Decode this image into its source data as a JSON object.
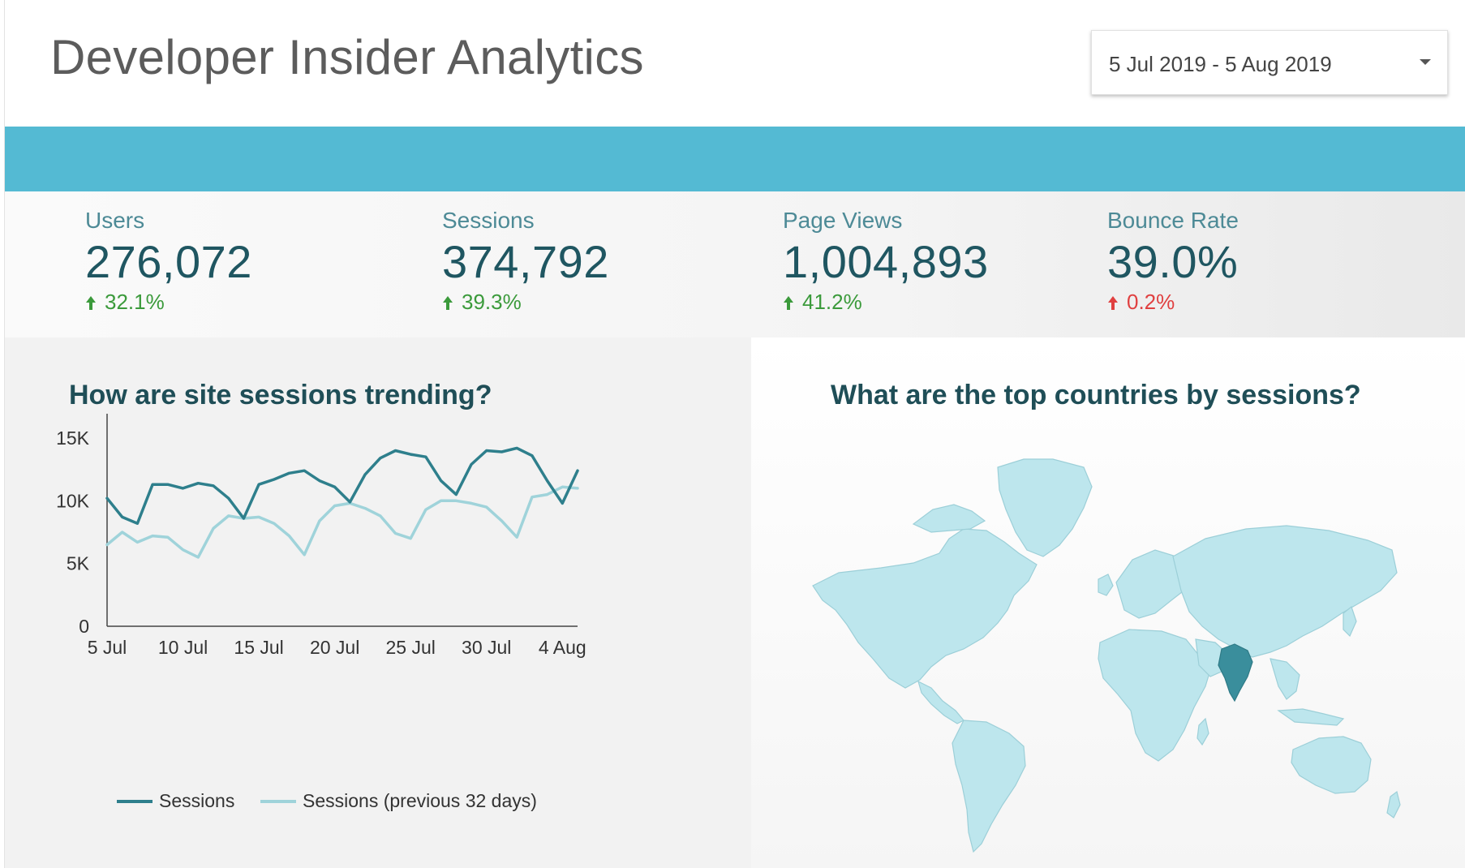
{
  "header": {
    "title": "Developer Insider Analytics",
    "date_range": "5 Jul 2019 - 5 Aug 2019"
  },
  "colors": {
    "banner": "#54bad3",
    "sessions": "#2e7f8c",
    "sessions_previous": "#9fd3da",
    "positive": "#3b9a3b",
    "negative": "#e04040",
    "map_land": "#bde6ed",
    "map_highlight": "#3a8e9c"
  },
  "kpis": [
    {
      "label": "Users",
      "value": "276,072",
      "delta": "32.1%",
      "trend": "up",
      "good": true
    },
    {
      "label": "Sessions",
      "value": "374,792",
      "delta": "39.3%",
      "trend": "up",
      "good": true
    },
    {
      "label": "Page Views",
      "value": "1,004,893",
      "delta": "41.2%",
      "trend": "up",
      "good": true
    },
    {
      "label": "Bounce Rate",
      "value": "39.0%",
      "delta": "0.2%",
      "trend": "up",
      "good": false
    }
  ],
  "trend_panel": {
    "title": "How are site sessions trending?"
  },
  "map_panel": {
    "title": "What are the top countries by sessions?",
    "highlighted_country": "India"
  },
  "chart_data": {
    "type": "line",
    "title": "How are site sessions trending?",
    "x": [
      "5 Jul",
      "6 Jul",
      "7 Jul",
      "8 Jul",
      "9 Jul",
      "10 Jul",
      "11 Jul",
      "12 Jul",
      "13 Jul",
      "14 Jul",
      "15 Jul",
      "16 Jul",
      "17 Jul",
      "18 Jul",
      "19 Jul",
      "20 Jul",
      "21 Jul",
      "22 Jul",
      "23 Jul",
      "24 Jul",
      "25 Jul",
      "26 Jul",
      "27 Jul",
      "28 Jul",
      "29 Jul",
      "30 Jul",
      "31 Jul",
      "1 Aug",
      "2 Aug",
      "3 Aug",
      "4 Aug",
      "5 Aug"
    ],
    "x_ticks": [
      "5 Jul",
      "10 Jul",
      "15 Jul",
      "20 Jul",
      "25 Jul",
      "30 Jul",
      "4 Aug"
    ],
    "y_ticks": [
      "0",
      "5K",
      "10K",
      "15K"
    ],
    "ylim": [
      0,
      15000
    ],
    "series": [
      {
        "name": "Sessions",
        "values": [
          10200,
          8700,
          8200,
          11300,
          11300,
          11000,
          11400,
          11200,
          10200,
          8600,
          11300,
          11700,
          12200,
          12400,
          11600,
          11100,
          9900,
          12100,
          13400,
          14000,
          13700,
          13500,
          11600,
          10500,
          12900,
          14000,
          13900,
          14200,
          13600,
          11600,
          9800,
          12400
        ]
      },
      {
        "name": "Sessions (previous 32 days)",
        "values": [
          6500,
          7500,
          6700,
          7200,
          7100,
          6100,
          5500,
          7800,
          8800,
          8600,
          8700,
          8200,
          7200,
          5700,
          8400,
          9600,
          9800,
          9400,
          8800,
          7400,
          7000,
          9300,
          10000,
          10000,
          9800,
          9500,
          8400,
          7100,
          10300,
          10500,
          11100,
          11000
        ]
      }
    ],
    "legend_position": "bottom"
  }
}
